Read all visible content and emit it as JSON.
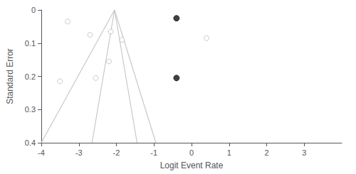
{
  "chart_data": {
    "type": "scatter",
    "xlabel": "Logit Event Rate",
    "ylabel": "Standard Error",
    "xlim": [
      -4,
      4
    ],
    "ylim": [
      0.4,
      0.0
    ],
    "xticks": [
      -4,
      -3,
      -2,
      -1,
      0,
      1,
      2,
      3
    ],
    "yticks": [
      0,
      0.1,
      0.2,
      0.3,
      0.4
    ],
    "grid": false,
    "series": [
      {
        "type": "line",
        "color": "#c8c8c8",
        "line_style": "solid",
        "x": [
          -2.05,
          -4.0
        ],
        "values": [
          0.0,
          0.4
        ]
      },
      {
        "type": "line",
        "color": "#c8c8c8",
        "line_style": "solid",
        "x": [
          -2.05,
          -0.95
        ],
        "values": [
          0.0,
          0.4
        ]
      },
      {
        "type": "line",
        "color": "#c8c8c8",
        "line_style": "solid",
        "x": [
          -2.05,
          -2.65
        ],
        "values": [
          0.0,
          0.4
        ]
      },
      {
        "type": "line",
        "color": "#c8c8c8",
        "line_style": "solid",
        "x": [
          -2.05,
          -1.45
        ],
        "values": [
          0.0,
          0.4
        ]
      },
      {
        "type": "scatter",
        "color": "#bbbbbb",
        "marker": "open circle",
        "x": [
          -3.3,
          -2.7,
          -2.15,
          -2.2,
          -3.5,
          -2.55,
          -1.85,
          0.4
        ],
        "values": [
          0.035,
          0.075,
          0.065,
          0.155,
          0.215,
          0.205,
          0.09,
          0.085
        ]
      },
      {
        "type": "scatter",
        "color": "#111111",
        "marker": "circle",
        "x": [
          -0.4,
          -0.4
        ],
        "values": [
          0.025,
          0.205
        ]
      }
    ]
  }
}
